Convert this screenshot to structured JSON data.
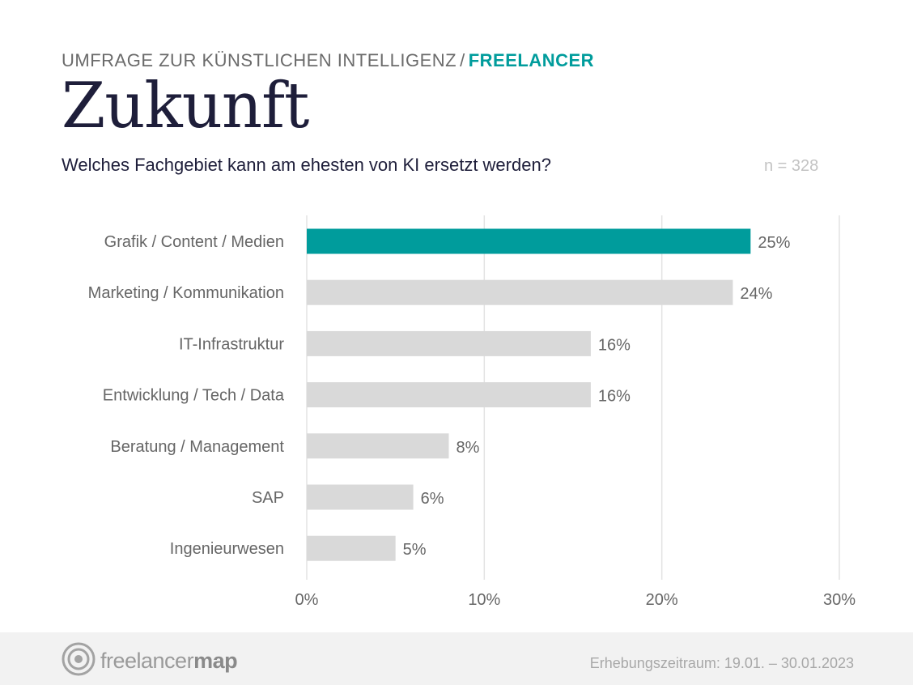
{
  "header": {
    "kicker": "UMFRAGE ZUR KÜNSTLICHEN INTELLIGENZ",
    "kicker_separator": "/",
    "kicker_accent": "FREELANCER",
    "title": "Zukunft",
    "question": "Welches Fachgebiet kann am ehesten von KI ersetzt werden?",
    "sample_size": "n = 328"
  },
  "chart_data": {
    "type": "bar",
    "orientation": "horizontal",
    "categories": [
      "Grafik / Content / Medien",
      "Marketing / Kommunikation",
      "IT-Infrastruktur",
      "Entwicklung / Tech / Data",
      "Beratung / Management",
      "SAP",
      "Ingenieurwesen"
    ],
    "values": [
      25,
      24,
      16,
      16,
      8,
      6,
      5
    ],
    "value_labels": [
      "25%",
      "24%",
      "16%",
      "16%",
      "8%",
      "6%",
      "5%"
    ],
    "xlim": [
      0,
      30
    ],
    "x_ticks": [
      0,
      10,
      20,
      30
    ],
    "x_tick_labels": [
      "0%",
      "10%",
      "20%",
      "30%"
    ],
    "grid": true,
    "highlight_index": 0,
    "colors": {
      "highlight": "#009c9c",
      "default": "#d9d9d9",
      "grid": "#e3e3e3",
      "label": "#666666"
    }
  },
  "footer": {
    "logo_text_light": "freelancer",
    "logo_text_bold": "map",
    "survey_period": "Erhebungszeitraum: 19.01. – 30.01.2023"
  }
}
